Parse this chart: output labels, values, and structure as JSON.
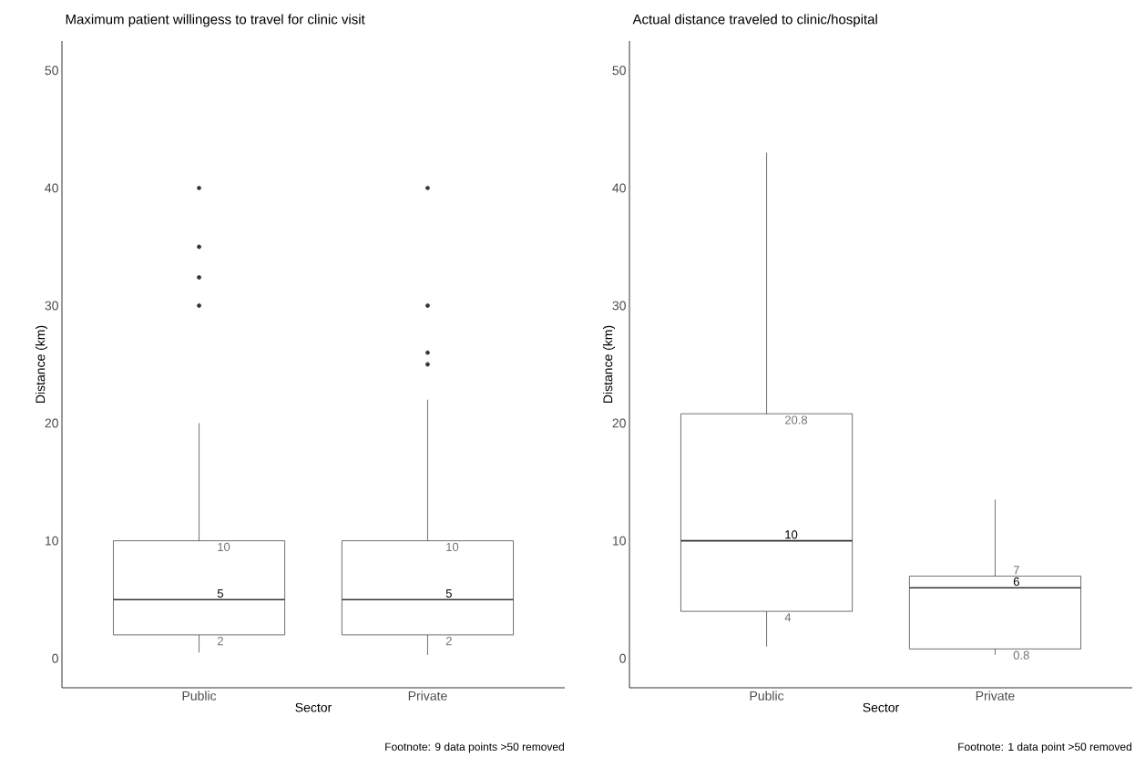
{
  "chart_data": [
    {
      "type": "box",
      "title": "Maximum patient willingess to travel for clinic visit",
      "xlabel": "Sector",
      "ylabel": "Distance (km)",
      "categories": [
        "Public",
        "Private"
      ],
      "color": "#333333",
      "boxes": [
        {
          "low": 0.5,
          "q1": 2,
          "median": 5,
          "q3": 10,
          "high": 20,
          "outliers": [
            30,
            32.4,
            35,
            40
          ]
        },
        {
          "low": 0.3,
          "q1": 2,
          "median": 5,
          "q3": 10,
          "high": 22,
          "outliers": [
            25,
            26,
            30,
            40
          ]
        }
      ],
      "ylim": [
        -2.5,
        52.5
      ],
      "yticks": [
        0,
        10,
        20,
        30,
        40,
        50
      ],
      "grid": false,
      "annotations": [
        {
          "text": "10",
          "x": "Public",
          "y": 10
        },
        {
          "text": "5",
          "x": "Public",
          "y": 5
        },
        {
          "text": "2",
          "x": "Public",
          "y": 2
        },
        {
          "text": "10",
          "x": "Private",
          "y": 10
        },
        {
          "text": "5",
          "x": "Private",
          "y": 5
        },
        {
          "text": "2",
          "x": "Private",
          "y": 2
        },
        "Footnote: 9 data points >50 removed"
      ]
    },
    {
      "type": "box",
      "title": "Actual distance traveled to clinic/hospital",
      "xlabel": "Sector",
      "ylabel": "Distance (km)",
      "categories": [
        "Public",
        "Private"
      ],
      "color": "#333333",
      "boxes": [
        {
          "low": 1,
          "q1": 4,
          "median": 10,
          "q3": 20.8,
          "high": 43
        },
        {
          "low": 0.3,
          "q1": 0.8,
          "median": 6,
          "q3": 7,
          "high": 13.5
        }
      ],
      "ylim": [
        -2.5,
        52.5
      ],
      "yticks": [
        0,
        10,
        20,
        30,
        40,
        50
      ],
      "grid": false,
      "annotations": [
        {
          "text": "20.8",
          "x": "Public",
          "y": 20.8
        },
        {
          "text": "10",
          "x": "Public",
          "y": 10
        },
        {
          "text": "4",
          "x": "Public",
          "y": 4
        },
        {
          "text": "7",
          "x": "Private",
          "y": 7
        },
        {
          "text": "6",
          "x": "Private",
          "y": 6
        },
        {
          "text": "0.8",
          "x": "Private",
          "y": 0.8
        },
        "Footnote: 1 data point >50 removed"
      ]
    }
  ]
}
